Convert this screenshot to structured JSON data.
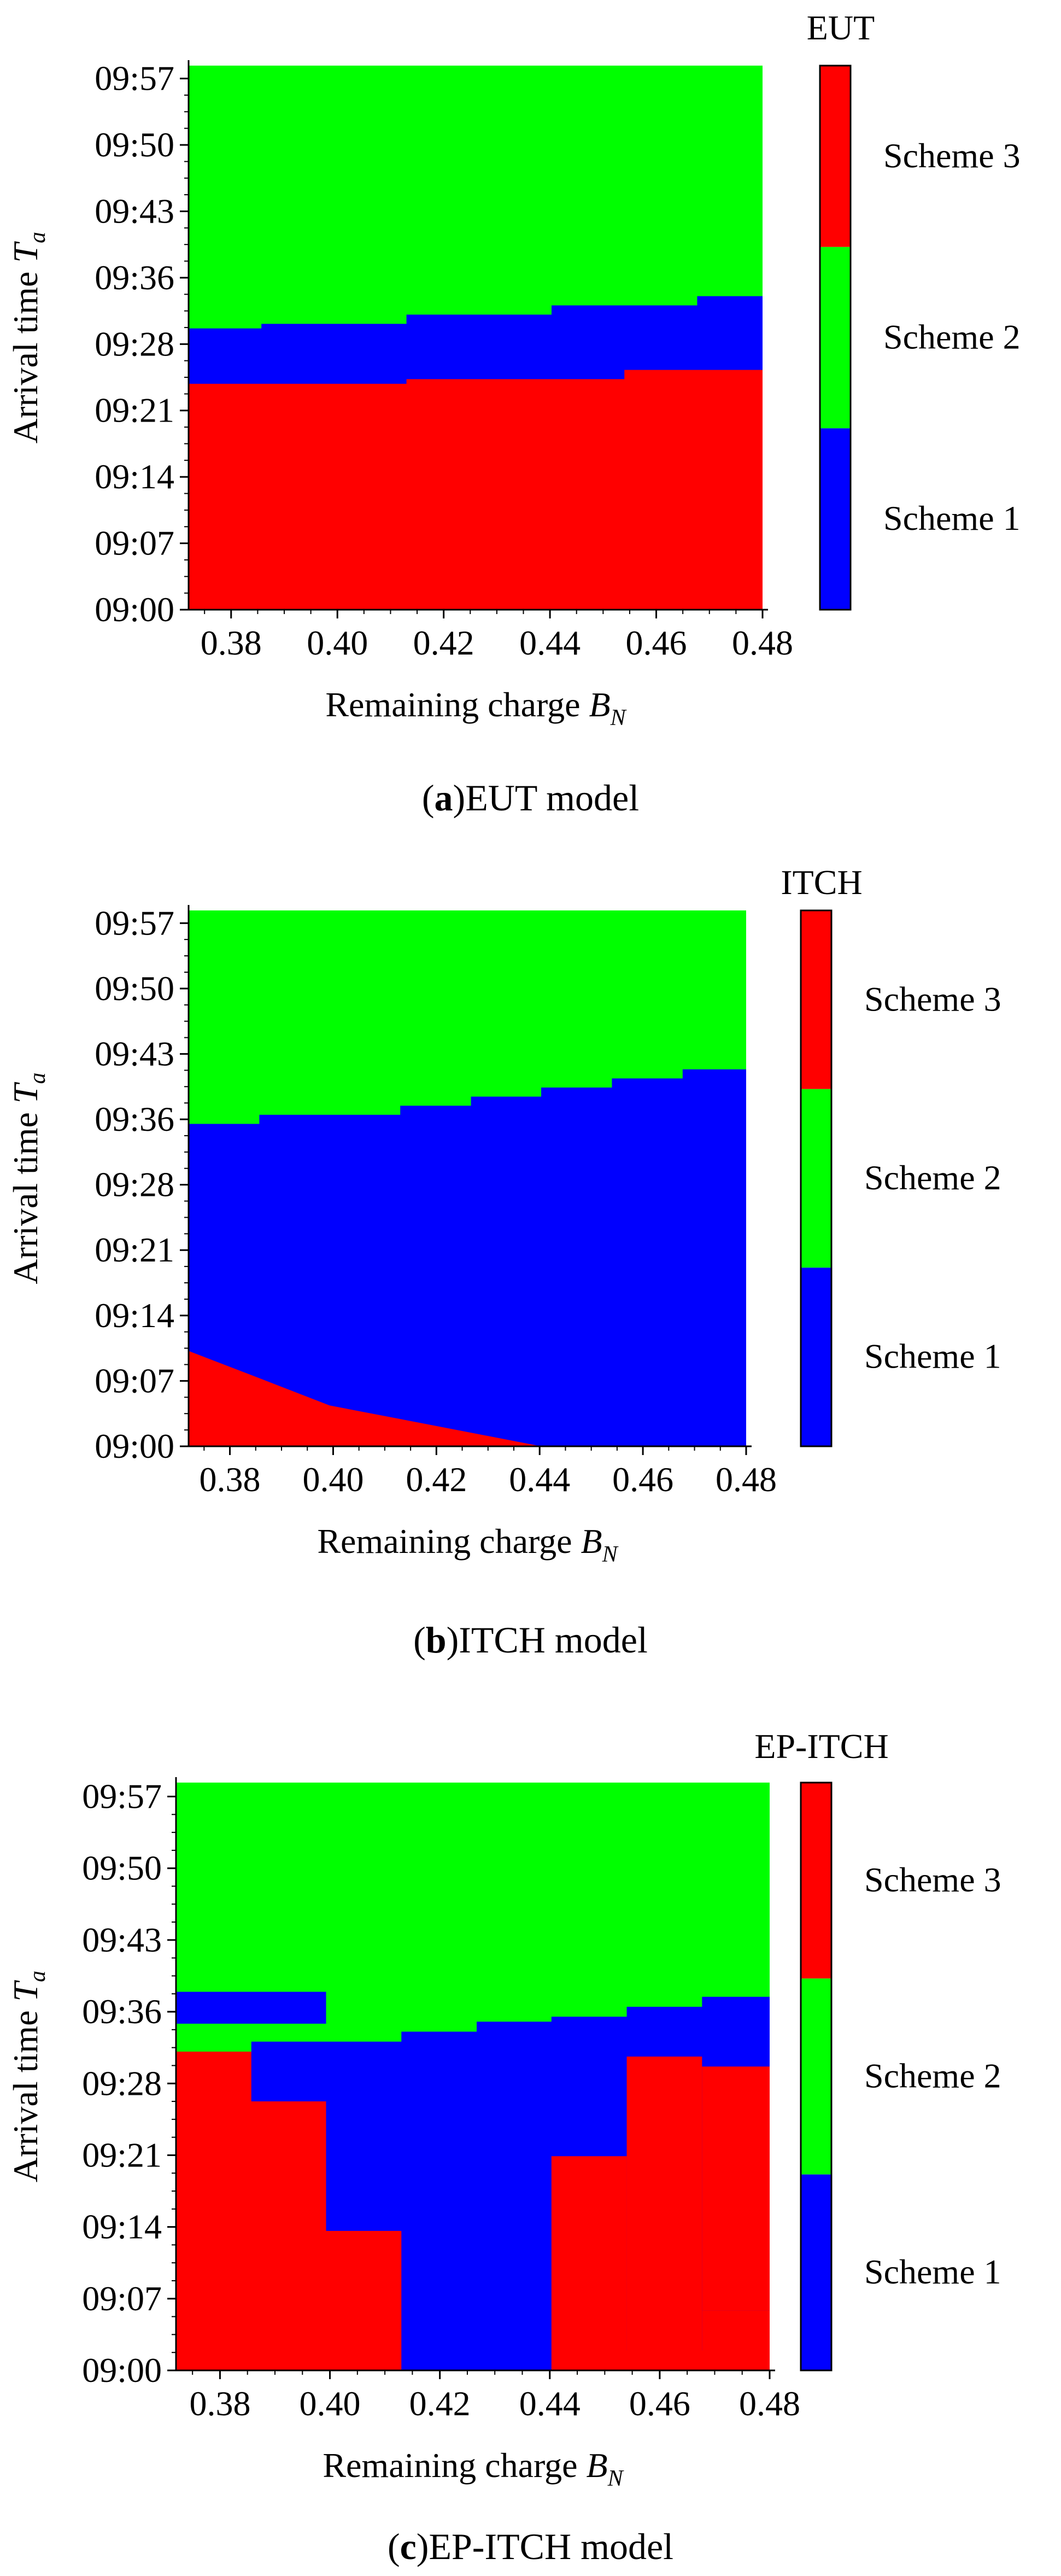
{
  "colors": {
    "scheme1": "#0000ff",
    "scheme2": "#00ff00",
    "scheme3": "#ff0000"
  },
  "panels": [
    {
      "caption_letter": "a",
      "caption_text": "EUT model",
      "chart": {
        "xlabel_main": "Remaining charge ",
        "xlabel_var": "B",
        "xlabel_sub": "N"
      }
    },
    {
      "caption_letter": "b",
      "caption_text": "ITCH model",
      "chart": {
        "xlabel_main": "Remaining charge ",
        "xlabel_var": "B",
        "xlabel_sub": "N"
      }
    },
    {
      "caption_letter": "c",
      "caption_text": "EP-ITCH model",
      "chart": {
        "xlabel_main": "Remaining charge ",
        "xlabel_var": "B",
        "xlabel_sub": "N"
      }
    }
  ],
  "chart_data": [
    {
      "type": "heatmap",
      "title": "EUT",
      "ylabel": "Arrival time T_a",
      "xlabel": "Remaining charge B_N",
      "xlim": [
        0.372,
        0.48
      ],
      "ylim_minutes": [
        0,
        59
      ],
      "xticks": [
        "0.38",
        "0.40",
        "0.42",
        "0.44",
        "0.46",
        "0.48"
      ],
      "yticks": [
        "09:00",
        "09:07",
        "09:14",
        "09:21",
        "09:28",
        "09:36",
        "09:43",
        "09:50",
        "09:57"
      ],
      "colorbar_labels": [
        "Scheme 1",
        "Scheme 2",
        "Scheme 3"
      ],
      "x_bins": [
        0.372,
        0.3857,
        0.3993,
        0.413,
        0.4267,
        0.4403,
        0.454,
        0.4677,
        0.48
      ],
      "boundaries": [
        {
          "name": "Scheme 3 upper (Scheme 1 lower)",
          "values_minutes": [
            24.5,
            24.5,
            24.5,
            25.0,
            25.0,
            25.0,
            26.0,
            26.0
          ]
        },
        {
          "name": "Scheme 1 upper (Scheme 2 lower)",
          "values_minutes": [
            30.5,
            31.0,
            31.0,
            32.0,
            32.0,
            33.0,
            33.0,
            34.0
          ]
        }
      ]
    },
    {
      "type": "heatmap",
      "title": "ITCH",
      "ylabel": "Arrival time T_a",
      "xlabel": "Remaining charge B_N",
      "xlim": [
        0.372,
        0.48
      ],
      "ylim_minutes": [
        0,
        59
      ],
      "xticks": [
        "0.38",
        "0.40",
        "0.42",
        "0.44",
        "0.46",
        "0.48"
      ],
      "yticks": [
        "09:00",
        "09:07",
        "09:14",
        "09:21",
        "09:28",
        "09:36",
        "09:43",
        "09:50",
        "09:57"
      ],
      "colorbar_labels": [
        "Scheme 1",
        "Scheme 2",
        "Scheme 3"
      ],
      "x_bins": [
        0.372,
        0.3857,
        0.3993,
        0.413,
        0.4267,
        0.4403,
        0.454,
        0.4677,
        0.48
      ],
      "boundaries": [
        {
          "name": "Scheme 3 upper (Scheme 1 lower)",
          "values_minutes": [
            10.5,
            7.5,
            4.5,
            3.0,
            1.5,
            0,
            0,
            0
          ]
        },
        {
          "name": "Scheme 1 upper (Scheme 2 lower)",
          "values_minutes": [
            35.5,
            36.5,
            36.5,
            37.5,
            38.5,
            39.5,
            40.5,
            41.5
          ]
        }
      ]
    },
    {
      "type": "heatmap",
      "title": "EP-ITCH",
      "ylabel": "Arrival time T_a",
      "xlabel": "Remaining charge B_N",
      "xlim": [
        0.372,
        0.48
      ],
      "ylim_minutes": [
        0,
        59
      ],
      "xticks": [
        "0.38",
        "0.40",
        "0.42",
        "0.44",
        "0.46",
        "0.48"
      ],
      "yticks": [
        "09:00",
        "09:07",
        "09:14",
        "09:21",
        "09:28",
        "09:36",
        "09:43",
        "09:50",
        "09:57"
      ],
      "colorbar_labels": [
        "Scheme 1",
        "Scheme 2",
        "Scheme 3"
      ],
      "x_bins": [
        0.372,
        0.3857,
        0.3993,
        0.413,
        0.4267,
        0.4403,
        0.454,
        0.4677,
        0.48
      ],
      "boundaries": [
        {
          "name": "Scheme 3 upper (Scheme 1 lower)",
          "values_minutes": [
            32.0,
            27.0,
            14.0,
            0,
            0,
            21.5,
            2.0,
            6.0
          ]
        },
        {
          "name": "Scheme 1 upper (Scheme 2 lower)",
          "values_minutes": [
            32.0,
            33.0,
            33.0,
            34.0,
            35.0,
            35.5,
            36.5,
            37.5
          ]
        }
      ],
      "islands": [
        {
          "scheme": "Scheme 1",
          "x_range": [
            0.372,
            0.3993
          ],
          "y_range_minutes": [
            34.8,
            38.0
          ]
        },
        {
          "scheme": "Scheme 3",
          "x_range": [
            0.454,
            0.4677
          ],
          "y_range_minutes": [
            2.0,
            31.5
          ]
        },
        {
          "scheme": "Scheme 3",
          "x_range": [
            0.4677,
            0.48
          ],
          "y_range_minutes": [
            6.0,
            30.5
          ]
        }
      ]
    }
  ]
}
